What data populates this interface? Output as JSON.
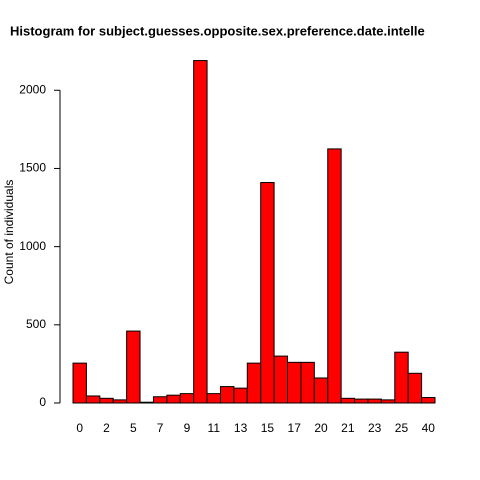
{
  "chart_data": {
    "type": "bar",
    "title": "Histogram for subject.guesses.opposite.sex.preference.date.intelle",
    "y_label": "Count of individuals",
    "categories": [
      "0",
      null,
      "2",
      null,
      "5",
      null,
      "7",
      null,
      "9",
      null,
      "11",
      null,
      "13",
      null,
      "15",
      null,
      "17",
      null,
      "20",
      null,
      "21",
      null,
      "23",
      null,
      "25",
      null,
      "40"
    ],
    "values": [
      255,
      45,
      30,
      20,
      460,
      5,
      40,
      50,
      60,
      2190,
      60,
      105,
      95,
      255,
      1410,
      300,
      260,
      260,
      160,
      1625,
      30,
      25,
      25,
      20,
      325,
      190,
      35
    ],
    "color": "#ff0000",
    "ylim": [
      0,
      2200
    ],
    "yticks": [
      0,
      500,
      1000,
      1500,
      2000
    ],
    "grid": false
  }
}
